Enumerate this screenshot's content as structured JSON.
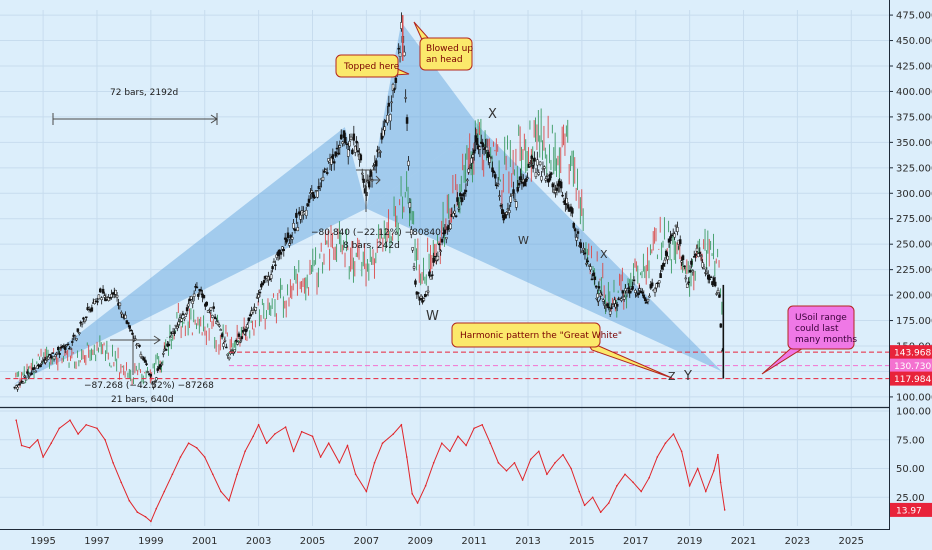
{
  "chart_data": [
    {
      "type": "candlestick",
      "ylim": [
        95,
        480
      ],
      "yticks": [
        "475.000",
        "450.000",
        "425.000",
        "400.000",
        "375.000",
        "350.000",
        "325.000",
        "300.000",
        "275.000",
        "250.000",
        "225.000",
        "200.000",
        "175.000",
        "150.000",
        "125.000",
        "100.000"
      ],
      "x_range": [
        1993.4,
        2026.4
      ],
      "xticks": [
        "1995",
        "1997",
        "1999",
        "2001",
        "2003",
        "2005",
        "2007",
        "2009",
        "2011",
        "2013",
        "2015",
        "2017",
        "2019",
        "2021",
        "2023",
        "2025"
      ],
      "price_path": [
        [
          1994.0,
          110
        ],
        [
          1995.0,
          135
        ],
        [
          1996.0,
          150
        ],
        [
          1997.0,
          198
        ],
        [
          1997.7,
          200
        ],
        [
          1998.3,
          160
        ],
        [
          1998.7,
          140
        ],
        [
          1999.1,
          112
        ],
        [
          1999.6,
          150
        ],
        [
          2000.0,
          170
        ],
        [
          2000.7,
          205
        ],
        [
          2001.4,
          180
        ],
        [
          2001.9,
          140
        ],
        [
          2002.5,
          165
        ],
        [
          2003.2,
          210
        ],
        [
          2004.0,
          250
        ],
        [
          2004.8,
          290
        ],
        [
          2005.6,
          330
        ],
        [
          2006.2,
          350
        ],
        [
          2006.7,
          345
        ],
        [
          2007.0,
          300
        ],
        [
          2007.5,
          345
        ],
        [
          2008.1,
          410
        ],
        [
          2008.35,
          468
        ],
        [
          2008.6,
          300
        ],
        [
          2008.8,
          210
        ],
        [
          2009.1,
          190
        ],
        [
          2009.6,
          240
        ],
        [
          2010.1,
          270
        ],
        [
          2010.6,
          300
        ],
        [
          2011.2,
          355
        ],
        [
          2011.6,
          335
        ],
        [
          2012.1,
          280
        ],
        [
          2012.6,
          300
        ],
        [
          2013.2,
          330
        ],
        [
          2013.7,
          320
        ],
        [
          2014.4,
          295
        ],
        [
          2014.9,
          255
        ],
        [
          2015.3,
          225
        ],
        [
          2015.9,
          185
        ],
        [
          2016.4,
          195
        ],
        [
          2016.9,
          210
        ],
        [
          2017.4,
          195
        ],
        [
          2017.9,
          220
        ],
        [
          2018.5,
          270
        ],
        [
          2018.9,
          210
        ],
        [
          2019.3,
          245
        ],
        [
          2019.7,
          220
        ],
        [
          2020.1,
          200
        ],
        [
          2020.25,
          125
        ]
      ],
      "secondary_path": [
        [
          1994.0,
          120
        ],
        [
          1995.0,
          140
        ],
        [
          1996.0,
          140
        ],
        [
          1997.0,
          150
        ],
        [
          1998.0,
          125
        ],
        [
          1999.0,
          120
        ],
        [
          2000.0,
          175
        ],
        [
          2001.0,
          170
        ],
        [
          2002.0,
          150
        ],
        [
          2003.0,
          180
        ],
        [
          2004.0,
          200
        ],
        [
          2005.0,
          225
        ],
        [
          2006.0,
          250
        ],
        [
          2007.0,
          230
        ],
        [
          2008.0,
          270
        ],
        [
          2008.5,
          300
        ],
        [
          2009.0,
          220
        ],
        [
          2010.0,
          280
        ],
        [
          2011.0,
          350
        ],
        [
          2012.0,
          320
        ],
        [
          2013.0,
          350
        ],
        [
          2014.0,
          355
        ],
        [
          2014.6,
          330
        ],
        [
          2015.2,
          240
        ],
        [
          2016.0,
          190
        ],
        [
          2017.0,
          220
        ],
        [
          2018.0,
          260
        ],
        [
          2018.9,
          220
        ],
        [
          2019.5,
          250
        ],
        [
          2020.0,
          240
        ],
        [
          2020.25,
          140
        ]
      ],
      "harmonic_pattern": [
        [
          1993.9,
          112
        ],
        [
          2006.2,
          365
        ],
        [
          2007.0,
          285
        ],
        [
          2008.3,
          468
        ],
        [
          2011.2,
          365
        ],
        [
          2020.2,
          125
        ]
      ],
      "horizontal_levels": [
        {
          "value": 143.968,
          "label": "143.968",
          "color": "#e8233a",
          "style": "dashed"
        },
        {
          "value": 130.73,
          "label": "130.730",
          "color": "#f472d0",
          "style": "dashed"
        },
        {
          "value": 117.984,
          "label": "117.984",
          "color": "#e8233a",
          "style": "dashed"
        }
      ],
      "annotations": {
        "bars_range_top": "72 bars, 2192d",
        "measure_top_1": "−80.840 (−22.12%) −80840",
        "measure_top_2": "8 bars, 242d",
        "measure_bottom_1": "−87.268 (−42.52%) −87268",
        "measure_bottom_2": "21 bars, 640d",
        "callout_topped": "Topped here",
        "callout_blowed_1": "Blowed up",
        "callout_blowed_2": "an head",
        "callout_harmonic": "Harmonic pattern the \"Great White\"",
        "callout_usoil_1": "USoil range",
        "callout_usoil_2": "could last",
        "callout_usoil_3": "many months",
        "letter_X": "X",
        "letter_W_bottom": "W",
        "letter_W": "W",
        "letter_x": "x",
        "letter_X_right": "X",
        "letter_Y_small": "Y",
        "letter_Z": "Z",
        "letter_Y": "Y"
      }
    },
    {
      "type": "line",
      "name": "oscillator",
      "ylim": [
        0,
        100
      ],
      "yticks": [
        "100.00",
        "75.00",
        "50.00",
        "25.00"
      ],
      "current_value": "13.97",
      "values": [
        [
          1994.0,
          92
        ],
        [
          1994.2,
          70
        ],
        [
          1994.5,
          68
        ],
        [
          1994.8,
          75
        ],
        [
          1995.0,
          60
        ],
        [
          1995.3,
          72
        ],
        [
          1995.6,
          85
        ],
        [
          1996.0,
          92
        ],
        [
          1996.3,
          80
        ],
        [
          1996.6,
          88
        ],
        [
          1997.0,
          85
        ],
        [
          1997.3,
          75
        ],
        [
          1997.6,
          55
        ],
        [
          1997.9,
          38
        ],
        [
          1998.2,
          22
        ],
        [
          1998.5,
          12
        ],
        [
          1998.8,
          8
        ],
        [
          1999.0,
          4
        ],
        [
          1999.2,
          15
        ],
        [
          1999.5,
          30
        ],
        [
          1999.8,
          45
        ],
        [
          2000.1,
          60
        ],
        [
          2000.4,
          72
        ],
        [
          2000.7,
          68
        ],
        [
          2001.0,
          60
        ],
        [
          2001.3,
          45
        ],
        [
          2001.6,
          30
        ],
        [
          2001.9,
          22
        ],
        [
          2002.2,
          45
        ],
        [
          2002.5,
          65
        ],
        [
          2002.8,
          78
        ],
        [
          2003.0,
          88
        ],
        [
          2003.3,
          72
        ],
        [
          2003.6,
          80
        ],
        [
          2004.0,
          86
        ],
        [
          2004.3,
          65
        ],
        [
          2004.6,
          82
        ],
        [
          2005.0,
          78
        ],
        [
          2005.3,
          60
        ],
        [
          2005.6,
          72
        ],
        [
          2006.0,
          55
        ],
        [
          2006.3,
          70
        ],
        [
          2006.6,
          45
        ],
        [
          2007.0,
          30
        ],
        [
          2007.3,
          55
        ],
        [
          2007.6,
          72
        ],
        [
          2008.0,
          80
        ],
        [
          2008.3,
          88
        ],
        [
          2008.5,
          60
        ],
        [
          2008.7,
          28
        ],
        [
          2008.9,
          20
        ],
        [
          2009.2,
          35
        ],
        [
          2009.5,
          55
        ],
        [
          2009.8,
          72
        ],
        [
          2010.1,
          65
        ],
        [
          2010.4,
          78
        ],
        [
          2010.7,
          70
        ],
        [
          2011.0,
          85
        ],
        [
          2011.3,
          88
        ],
        [
          2011.6,
          72
        ],
        [
          2011.9,
          55
        ],
        [
          2012.2,
          48
        ],
        [
          2012.5,
          55
        ],
        [
          2012.8,
          40
        ],
        [
          2013.1,
          58
        ],
        [
          2013.4,
          65
        ],
        [
          2013.7,
          45
        ],
        [
          2014.0,
          55
        ],
        [
          2014.3,
          62
        ],
        [
          2014.6,
          50
        ],
        [
          2014.9,
          30
        ],
        [
          2015.1,
          18
        ],
        [
          2015.4,
          25
        ],
        [
          2015.7,
          12
        ],
        [
          2016.0,
          20
        ],
        [
          2016.3,
          35
        ],
        [
          2016.6,
          45
        ],
        [
          2016.9,
          38
        ],
        [
          2017.2,
          30
        ],
        [
          2017.5,
          42
        ],
        [
          2017.8,
          60
        ],
        [
          2018.1,
          72
        ],
        [
          2018.4,
          80
        ],
        [
          2018.7,
          65
        ],
        [
          2019.0,
          35
        ],
        [
          2019.3,
          50
        ],
        [
          2019.6,
          30
        ],
        [
          2019.9,
          48
        ],
        [
          2020.05,
          62
        ],
        [
          2020.15,
          38
        ],
        [
          2020.3,
          14
        ]
      ]
    }
  ]
}
